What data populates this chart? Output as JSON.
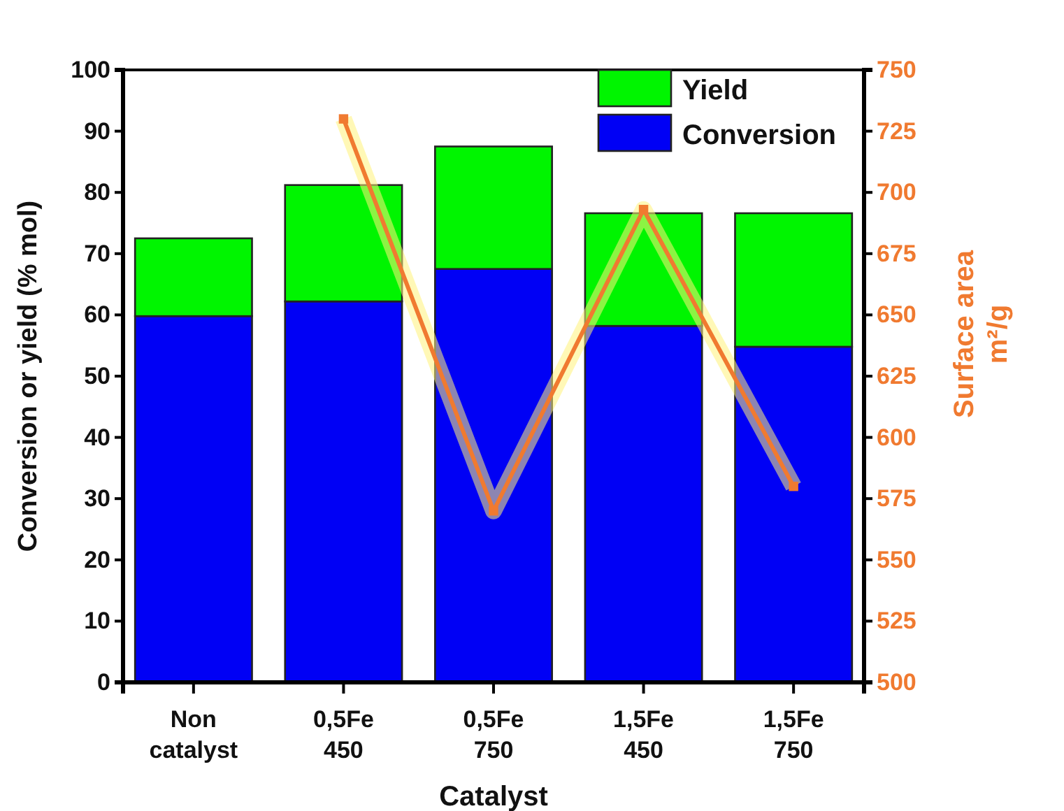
{
  "chart_data": {
    "type": "bar",
    "stacked": true,
    "xlabel": "Catalyst",
    "ylabel": "Conversion or yield (% mol)",
    "y2label": "Surface area\nm²/g",
    "categories": [
      "Non\ncatalyst",
      "0,5Fe\n450",
      "0,5Fe\n750",
      "1,5Fe\n450",
      "1,5Fe\n750"
    ],
    "series": [
      {
        "name": "Conversion",
        "color": "#0000f5",
        "values": [
          59.8,
          62.2,
          67.5,
          58.2,
          54.8
        ]
      },
      {
        "name": "Yield",
        "color": "#00f500",
        "values": [
          12.7,
          19.0,
          20.0,
          18.4,
          21.8
        ]
      },
      {
        "type": "line",
        "axis": "y2",
        "color": "#f07a30",
        "marker": "square",
        "values": [
          null,
          730,
          570,
          693,
          580
        ]
      }
    ],
    "ylim": [
      0,
      100
    ],
    "yticks": [
      0,
      10,
      20,
      30,
      40,
      50,
      60,
      70,
      80,
      90,
      100
    ],
    "y2lim": [
      500,
      750
    ],
    "y2ticks": [
      500,
      525,
      550,
      575,
      600,
      625,
      650,
      675,
      700,
      725,
      750
    ],
    "legend": "top right",
    "grid": false
  }
}
